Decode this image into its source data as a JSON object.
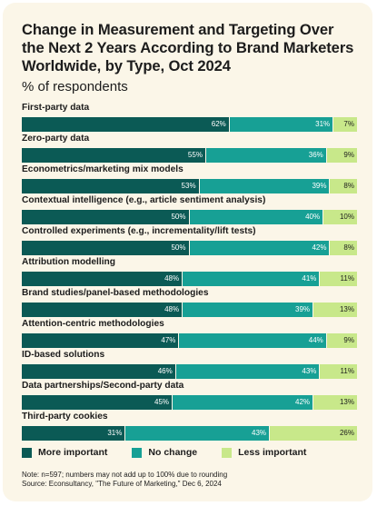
{
  "colors": {
    "more_important": "#0b5a55",
    "no_change": "#17a095",
    "less_important": "#c8e88a",
    "background": "#fbf6e8"
  },
  "chart_data": {
    "type": "bar",
    "orientation": "horizontal",
    "stacked": true,
    "title": "Change in Measurement and Targeting Over the Next 2 Years According to Brand Marketers Worldwide, by Type, Oct 2024",
    "subtitle": "% of respondents",
    "categories": [
      "First-party data",
      "Zero-party data",
      "Econometrics/marketing mix models",
      "Contextual intelligence (e.g., article sentiment analysis)",
      "Controlled experiments (e.g., incrementality/lift tests)",
      "Attribution modelling",
      "Brand studies/panel-based methodologies",
      "Attention-centric methodologies",
      "ID-based solutions",
      "Data partnerships/Second-party data",
      "Third-party cookies"
    ],
    "series": [
      {
        "name": "More important",
        "values": [
          62,
          55,
          53,
          50,
          50,
          48,
          48,
          47,
          46,
          45,
          31
        ]
      },
      {
        "name": "No change",
        "values": [
          31,
          36,
          39,
          40,
          42,
          41,
          39,
          44,
          43,
          42,
          43
        ]
      },
      {
        "name": "Less important",
        "values": [
          7,
          9,
          8,
          10,
          8,
          11,
          13,
          9,
          11,
          13,
          26
        ]
      }
    ],
    "value_suffix": "%",
    "legend_position": "bottom-left",
    "xlim": [
      0,
      100
    ]
  },
  "notes": {
    "line1": "Note: n=597; numbers may not add up to 100% due to rounding",
    "line2": "Source: Econsultancy, \"The Future of Marketing,\" Dec 6, 2024"
  }
}
